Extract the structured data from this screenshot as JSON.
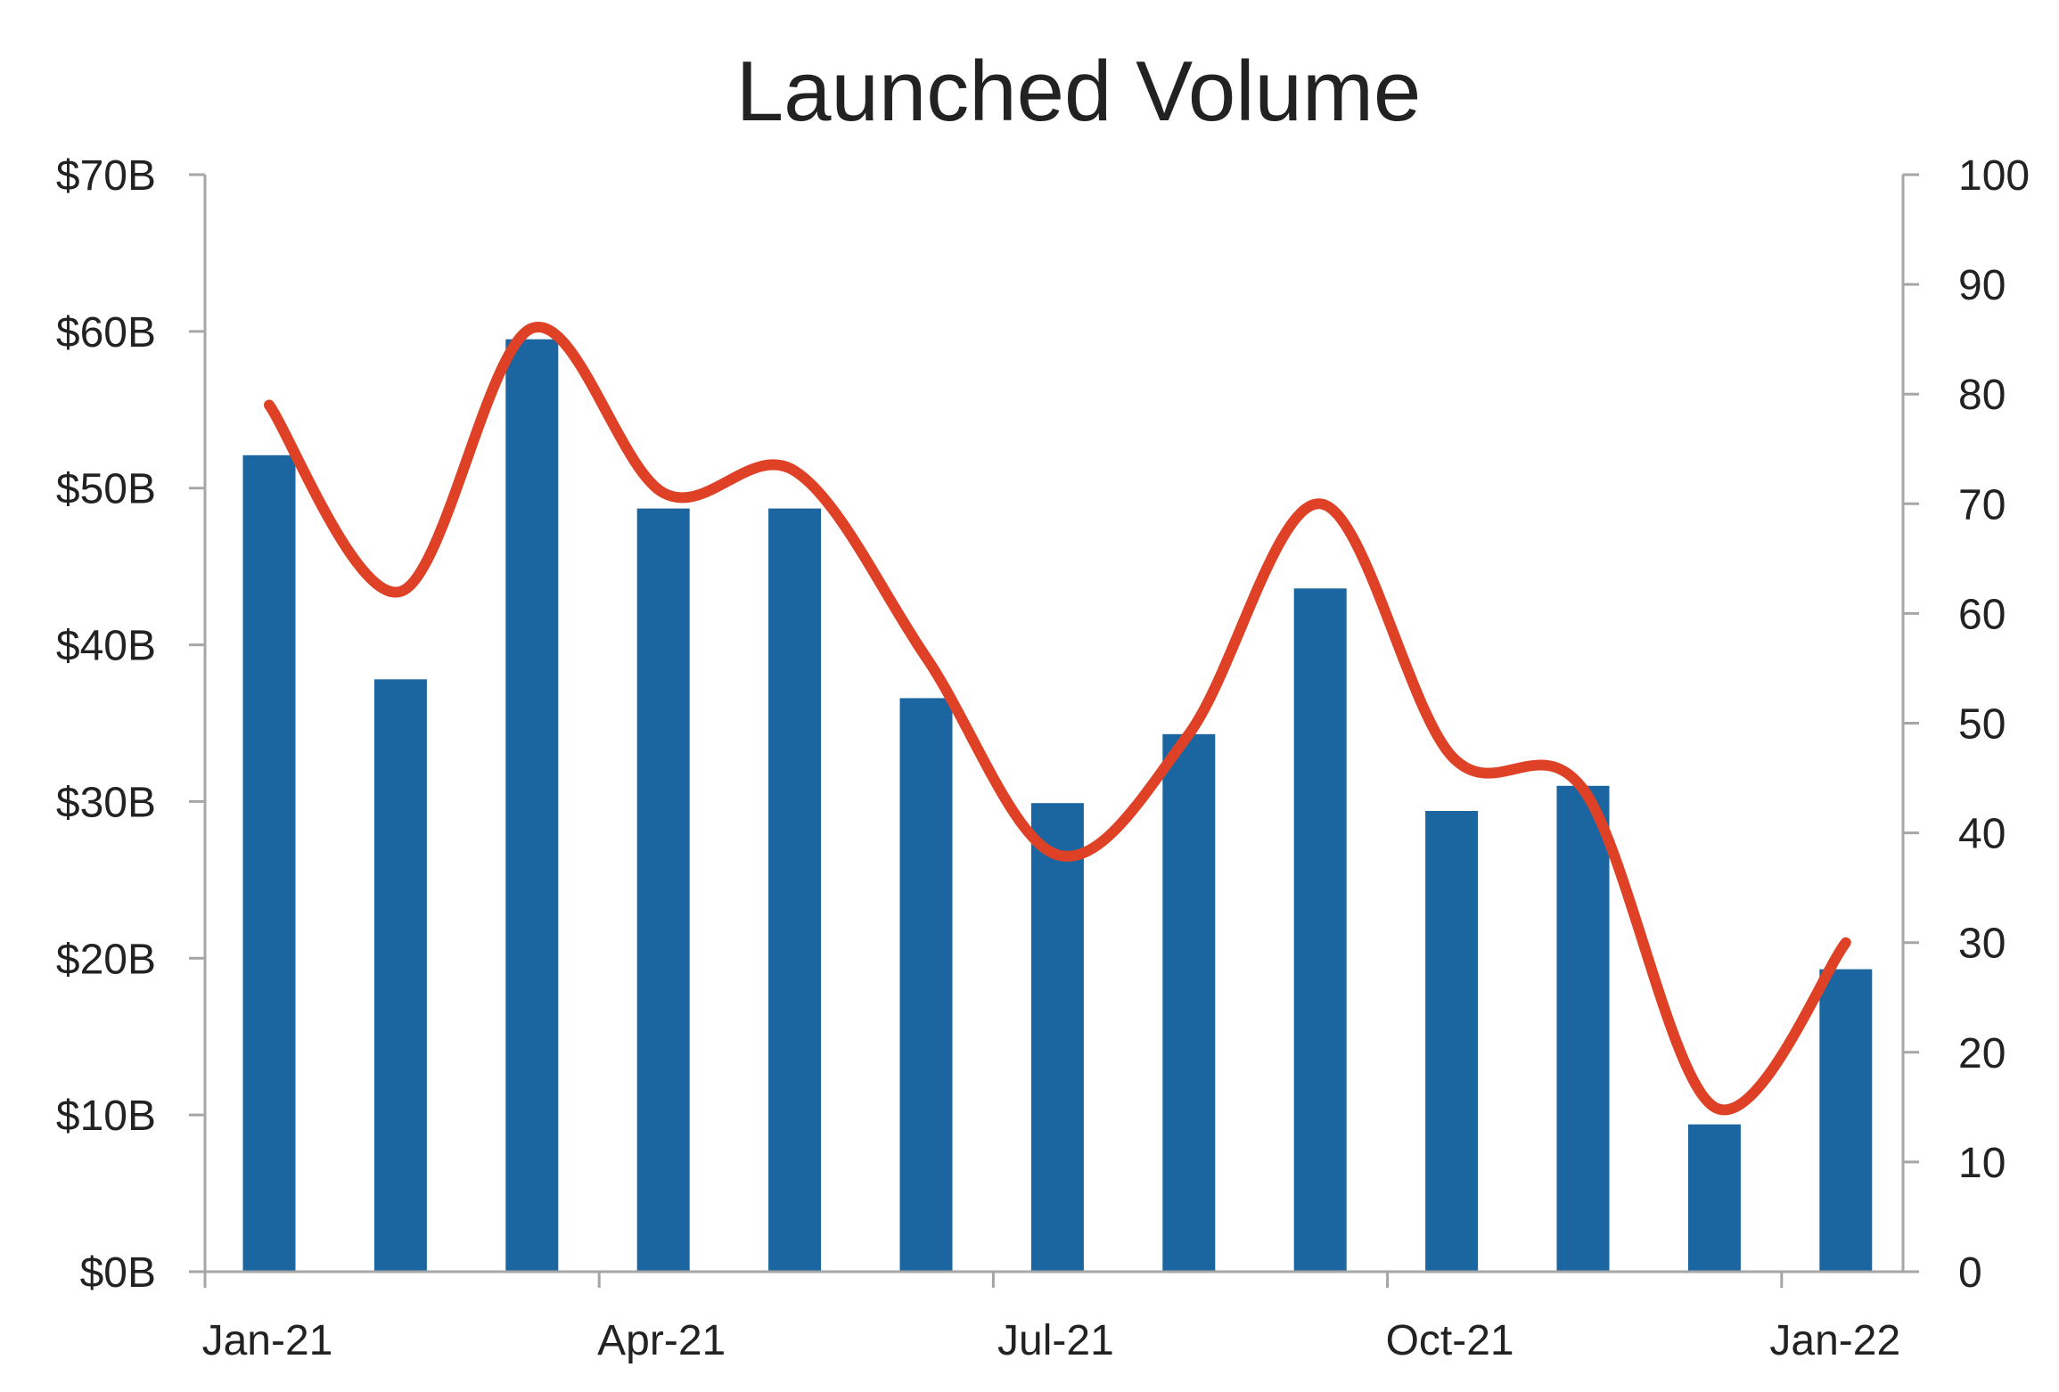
{
  "colors": {
    "bars": "#1b66a0",
    "line": "#de4126",
    "axis": "#a6a6a6",
    "text": "#222222"
  },
  "chart_data": {
    "type": "bar",
    "title": "Launched Volume",
    "x": [
      "Jan-21",
      "Feb-21",
      "Mar-21",
      "Apr-21",
      "May-21",
      "Jun-21",
      "Jul-21",
      "Aug-21",
      "Sep-21",
      "Oct-21",
      "Nov-21",
      "Dec-21",
      "Jan-22"
    ],
    "x_tick_labels": [
      "Jan-21",
      "Apr-21",
      "Jul-21",
      "Oct-21",
      "Jan-22"
    ],
    "left_axis": {
      "ylim": [
        0,
        70
      ],
      "tick_labels": [
        "$0B",
        "$10B",
        "$20B",
        "$30B",
        "$40B",
        "$50B",
        "$60B",
        "$70B"
      ]
    },
    "right_axis": {
      "ylim": [
        0,
        100
      ],
      "tick_labels": [
        "0",
        "10",
        "20",
        "30",
        "40",
        "50",
        "60",
        "70",
        "80",
        "90",
        "100"
      ]
    },
    "series": [
      {
        "type": "bar",
        "axis": "left",
        "values": [
          52.1,
          37.8,
          59.5,
          48.7,
          48.7,
          36.6,
          29.9,
          34.3,
          43.6,
          29.4,
          31.0,
          9.4,
          19.3
        ]
      },
      {
        "type": "line",
        "axis": "right",
        "smooth": true,
        "values": [
          79,
          62,
          86,
          71,
          73,
          56,
          38,
          49,
          70,
          47,
          44,
          15,
          30
        ]
      }
    ],
    "grid": false,
    "legend": "none"
  }
}
